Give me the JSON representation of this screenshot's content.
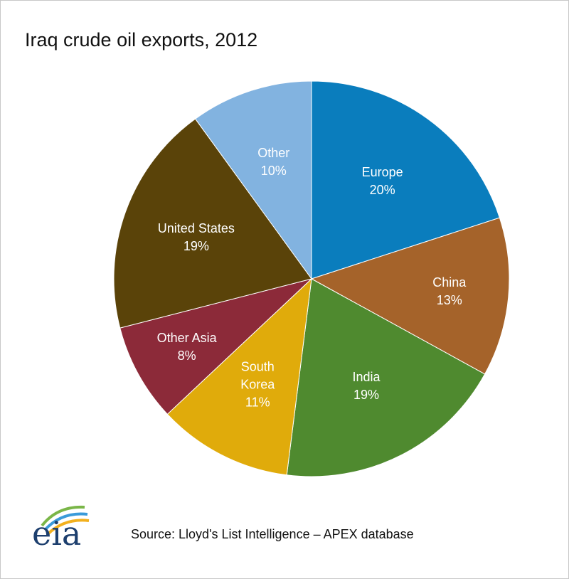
{
  "chart_data": {
    "type": "pie",
    "title": "Iraq crude oil exports, 2012",
    "categories": [
      "Europe",
      "China",
      "India",
      "South Korea",
      "Other Asia",
      "United States",
      "Other"
    ],
    "values": [
      20,
      13,
      19,
      11,
      8,
      19,
      10
    ],
    "value_labels": [
      "20%",
      "13%",
      "19%",
      "11%",
      "8%",
      "19%",
      "10%"
    ],
    "colors": [
      "#0a7dbd",
      "#a5632a",
      "#4f8a2f",
      "#e0ab0b",
      "#8c2a39",
      "#5a4309",
      "#82b3e0"
    ],
    "source": "Source: Lloyd's List Intelligence – APEX database",
    "logo": "eia"
  }
}
